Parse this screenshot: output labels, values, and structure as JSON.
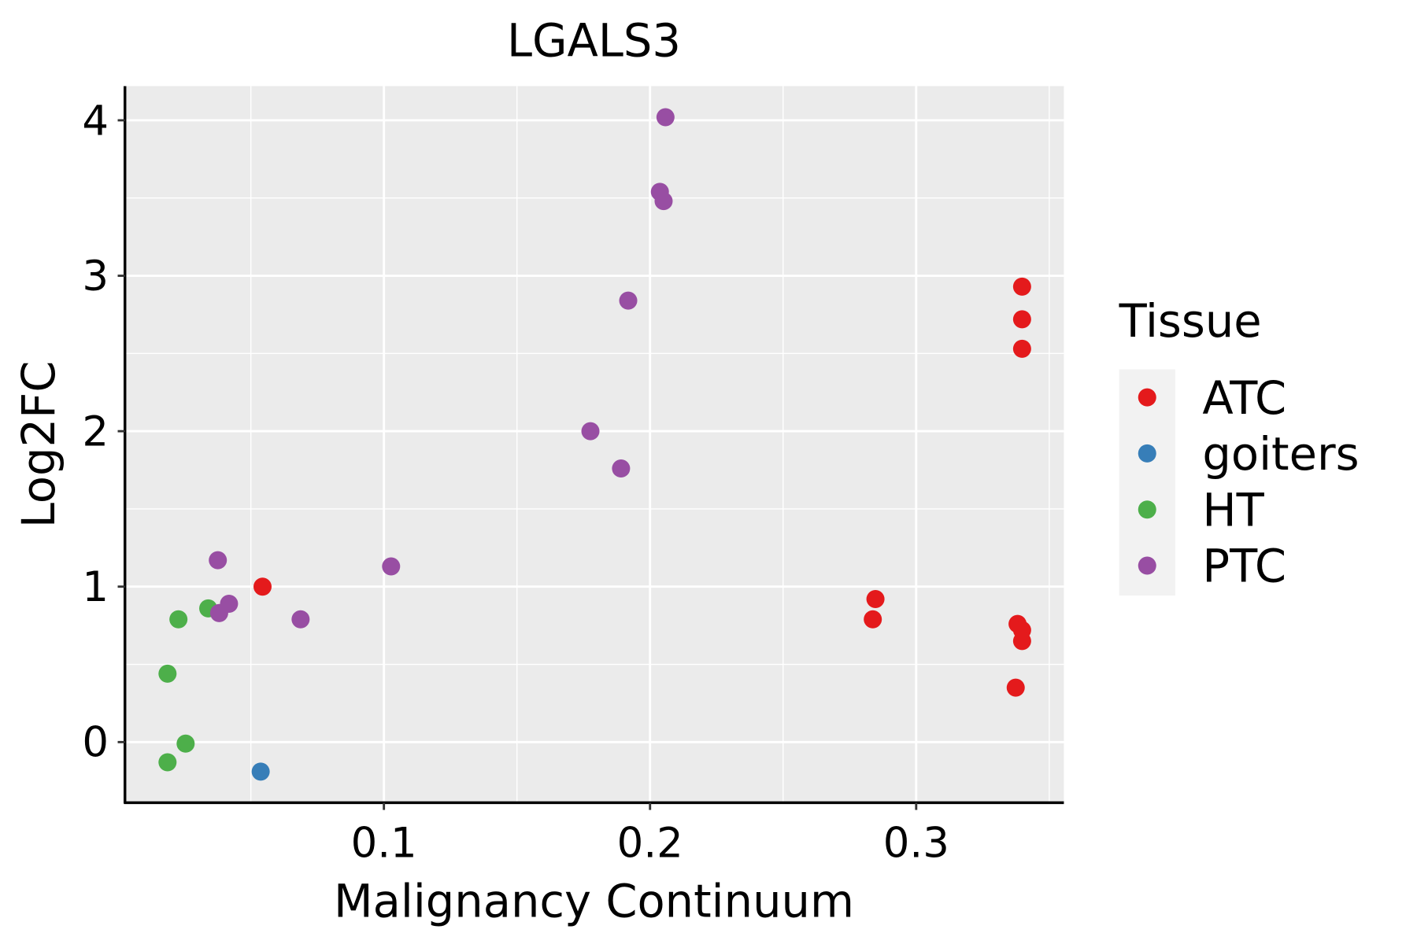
{
  "chart_data": {
    "type": "scatter",
    "title": "LGALS3",
    "xlabel": "Malignancy Continuum",
    "ylabel": "Log2FC",
    "xlim": [
      0.0027,
      0.3555
    ],
    "ylim": [
      -0.39,
      4.22
    ],
    "xticks": [
      0.1,
      0.2,
      0.3
    ],
    "xtick_labels": [
      "0.1",
      "0.2",
      "0.3"
    ],
    "yticks": [
      0,
      1,
      2,
      3,
      4
    ],
    "ytick_labels": [
      "0",
      "1",
      "2",
      "3",
      "4"
    ],
    "grid": true,
    "legend": {
      "title": "Tissue",
      "placement": "right"
    },
    "series": [
      {
        "name": "ATC",
        "color": "#E41A1C",
        "points": [
          [
            0.3398,
            2.93
          ],
          [
            0.3398,
            2.72
          ],
          [
            0.3398,
            2.53
          ],
          [
            0.0544,
            1.0
          ],
          [
            0.2847,
            0.92
          ],
          [
            0.2837,
            0.79
          ],
          [
            0.3381,
            0.76
          ],
          [
            0.3398,
            0.72
          ],
          [
            0.3398,
            0.65
          ],
          [
            0.3374,
            0.35
          ]
        ]
      },
      {
        "name": "goiters",
        "color": "#377EB8",
        "points": [
          [
            0.0537,
            -0.19
          ]
        ]
      },
      {
        "name": "HT",
        "color": "#4DAF4A",
        "points": [
          [
            0.0228,
            0.79
          ],
          [
            0.034,
            0.86
          ],
          [
            0.0187,
            0.44
          ],
          [
            0.0255,
            -0.01
          ],
          [
            0.0187,
            -0.13
          ]
        ]
      },
      {
        "name": "PTC",
        "color": "#984EA3",
        "points": [
          [
            0.2058,
            4.02
          ],
          [
            0.2037,
            3.54
          ],
          [
            0.2051,
            3.48
          ],
          [
            0.1918,
            2.84
          ],
          [
            0.1776,
            2.0
          ],
          [
            0.1891,
            1.76
          ],
          [
            0.0376,
            1.17
          ],
          [
            0.1027,
            1.13
          ],
          [
            0.0418,
            0.89
          ],
          [
            0.0381,
            0.83
          ],
          [
            0.0687,
            0.79
          ]
        ]
      }
    ]
  }
}
